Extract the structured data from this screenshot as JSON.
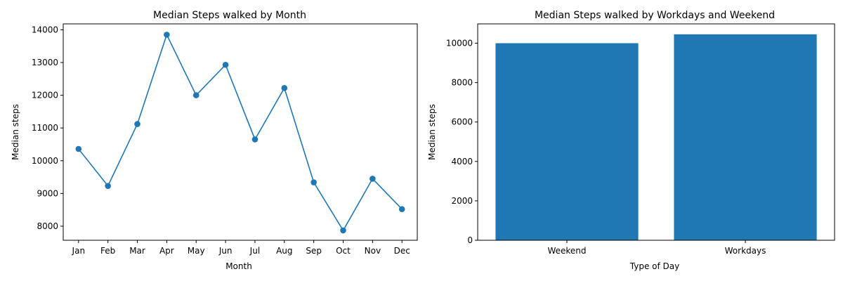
{
  "colors": {
    "series": "#1f77b4",
    "axis": "#000000"
  },
  "chart_data": [
    {
      "type": "line",
      "title": "Median Steps walked by Month",
      "xlabel": "Month",
      "ylabel": "Median steps",
      "categories": [
        "Jan",
        "Feb",
        "Mar",
        "Apr",
        "May",
        "Jun",
        "Jul",
        "Aug",
        "Sep",
        "Oct",
        "Nov",
        "Dec"
      ],
      "values": [
        10360,
        9230,
        11120,
        13850,
        12000,
        12930,
        10650,
        12220,
        9340,
        7870,
        9450,
        8520
      ],
      "ylim": [
        7570,
        14180
      ],
      "yticks": [
        8000,
        9000,
        10000,
        11000,
        12000,
        13000,
        14000
      ],
      "markers": true,
      "grid": false,
      "legend": "none"
    },
    {
      "type": "bar",
      "title": "Median Steps walked by Workdays and Weekend",
      "xlabel": "Type of Day",
      "ylabel": "Median steps",
      "categories": [
        "Weekend",
        "Workdays"
      ],
      "values": [
        10000,
        10450
      ],
      "ylim": [
        0,
        10980
      ],
      "yticks": [
        0,
        2000,
        4000,
        6000,
        8000,
        10000
      ],
      "grid": false,
      "legend": "none"
    }
  ]
}
